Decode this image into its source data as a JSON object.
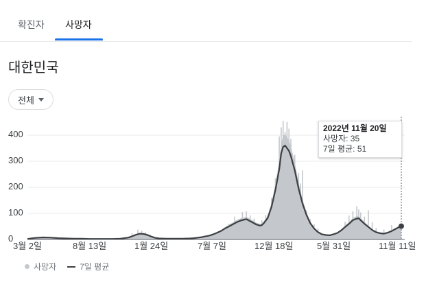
{
  "tabs": [
    {
      "label": "확진자",
      "active": false
    },
    {
      "label": "사망자",
      "active": true
    }
  ],
  "region": "대한민국",
  "filter": {
    "label": "전체"
  },
  "colors": {
    "accent": "#1a73e8",
    "bar": "#c4c8cc",
    "avg_line": "#3c4043"
  },
  "tooltip": {
    "date": "2022년 11월 20일",
    "deaths_label": "사망자",
    "deaths_value": "35",
    "avg_label": "7일 평균",
    "avg_value": "51"
  },
  "legend": {
    "deaths": "사망자",
    "avg": "7일 평균"
  },
  "chart_data": {
    "type": "bar",
    "ylim": [
      0,
      450
    ],
    "yticks": [
      "0",
      "100",
      "200",
      "300",
      "400"
    ],
    "xticks": [
      "3월 2일",
      "8월 13일",
      "1월 24일",
      "7월 7일",
      "12월 18일",
      "5월 31일",
      "11월 11일"
    ],
    "series": [
      {
        "name": "사망자",
        "kind": "bars"
      },
      {
        "name": "7일 평균",
        "kind": "line"
      }
    ],
    "avg_points": [
      [
        0,
        2
      ],
      [
        4,
        6
      ],
      [
        8,
        8
      ],
      [
        12,
        7
      ],
      [
        16,
        5
      ],
      [
        20,
        4
      ],
      [
        24,
        3
      ],
      [
        28,
        3
      ],
      [
        32,
        2
      ],
      [
        36,
        2
      ],
      [
        40,
        2
      ],
      [
        44,
        2
      ],
      [
        48,
        3
      ],
      [
        52,
        7
      ],
      [
        54,
        12
      ],
      [
        56,
        18
      ],
      [
        58,
        22
      ],
      [
        60,
        21
      ],
      [
        62,
        17
      ],
      [
        64,
        11
      ],
      [
        66,
        6
      ],
      [
        68,
        4
      ],
      [
        72,
        3
      ],
      [
        76,
        3
      ],
      [
        80,
        3
      ],
      [
        84,
        4
      ],
      [
        86,
        5
      ],
      [
        88,
        7
      ],
      [
        90,
        9
      ],
      [
        92,
        12
      ],
      [
        94,
        15
      ],
      [
        96,
        20
      ],
      [
        98,
        26
      ],
      [
        100,
        33
      ],
      [
        102,
        42
      ],
      [
        104,
        50
      ],
      [
        106,
        58
      ],
      [
        108,
        66
      ],
      [
        110,
        72
      ],
      [
        112,
        76
      ],
      [
        113,
        78
      ],
      [
        114,
        74
      ],
      [
        116,
        66
      ],
      [
        118,
        58
      ],
      [
        120,
        53
      ],
      [
        121,
        55
      ],
      [
        122,
        62
      ],
      [
        124,
        82
      ],
      [
        126,
        125
      ],
      [
        128,
        190
      ],
      [
        130,
        270
      ],
      [
        131,
        330
      ],
      [
        132,
        355
      ],
      [
        133,
        360
      ],
      [
        134,
        350
      ],
      [
        135,
        340
      ],
      [
        136,
        320
      ],
      [
        138,
        265
      ],
      [
        140,
        195
      ],
      [
        142,
        138
      ],
      [
        144,
        95
      ],
      [
        146,
        62
      ],
      [
        148,
        42
      ],
      [
        150,
        28
      ],
      [
        152,
        20
      ],
      [
        154,
        17
      ],
      [
        156,
        16
      ],
      [
        158,
        20
      ],
      [
        160,
        25
      ],
      [
        162,
        35
      ],
      [
        164,
        48
      ],
      [
        166,
        60
      ],
      [
        168,
        74
      ],
      [
        170,
        80
      ],
      [
        171,
        81
      ],
      [
        172,
        74
      ],
      [
        174,
        60
      ],
      [
        176,
        48
      ],
      [
        178,
        36
      ],
      [
        180,
        28
      ],
      [
        182,
        24
      ],
      [
        184,
        22
      ],
      [
        186,
        26
      ],
      [
        188,
        32
      ],
      [
        190,
        40
      ],
      [
        192,
        48
      ],
      [
        193,
        51
      ]
    ],
    "spikes": [
      [
        10,
        4
      ],
      [
        26,
        3
      ],
      [
        54,
        24
      ],
      [
        57,
        38
      ],
      [
        59,
        34
      ],
      [
        61,
        28
      ],
      [
        104,
        60
      ],
      [
        107,
        88
      ],
      [
        109,
        78
      ],
      [
        111,
        105
      ],
      [
        113,
        108
      ],
      [
        115,
        92
      ],
      [
        117,
        80
      ],
      [
        121,
        74
      ],
      [
        123,
        94
      ],
      [
        126,
        160
      ],
      [
        128,
        235
      ],
      [
        130,
        395
      ],
      [
        131,
        430
      ],
      [
        132,
        455
      ],
      [
        133,
        412
      ],
      [
        134,
        450
      ],
      [
        135,
        425
      ],
      [
        136,
        385
      ],
      [
        138,
        325
      ],
      [
        140,
        255
      ],
      [
        141,
        215
      ],
      [
        142,
        265
      ],
      [
        144,
        112
      ],
      [
        146,
        78
      ],
      [
        148,
        58
      ],
      [
        150,
        42
      ],
      [
        164,
        68
      ],
      [
        166,
        92
      ],
      [
        168,
        108
      ],
      [
        170,
        128
      ],
      [
        171,
        115
      ],
      [
        172,
        104
      ],
      [
        174,
        88
      ],
      [
        176,
        112
      ],
      [
        178,
        66
      ],
      [
        180,
        44
      ],
      [
        184,
        38
      ],
      [
        188,
        55
      ]
    ],
    "avg_at_cursor": 51,
    "cursor_day": 193
  }
}
